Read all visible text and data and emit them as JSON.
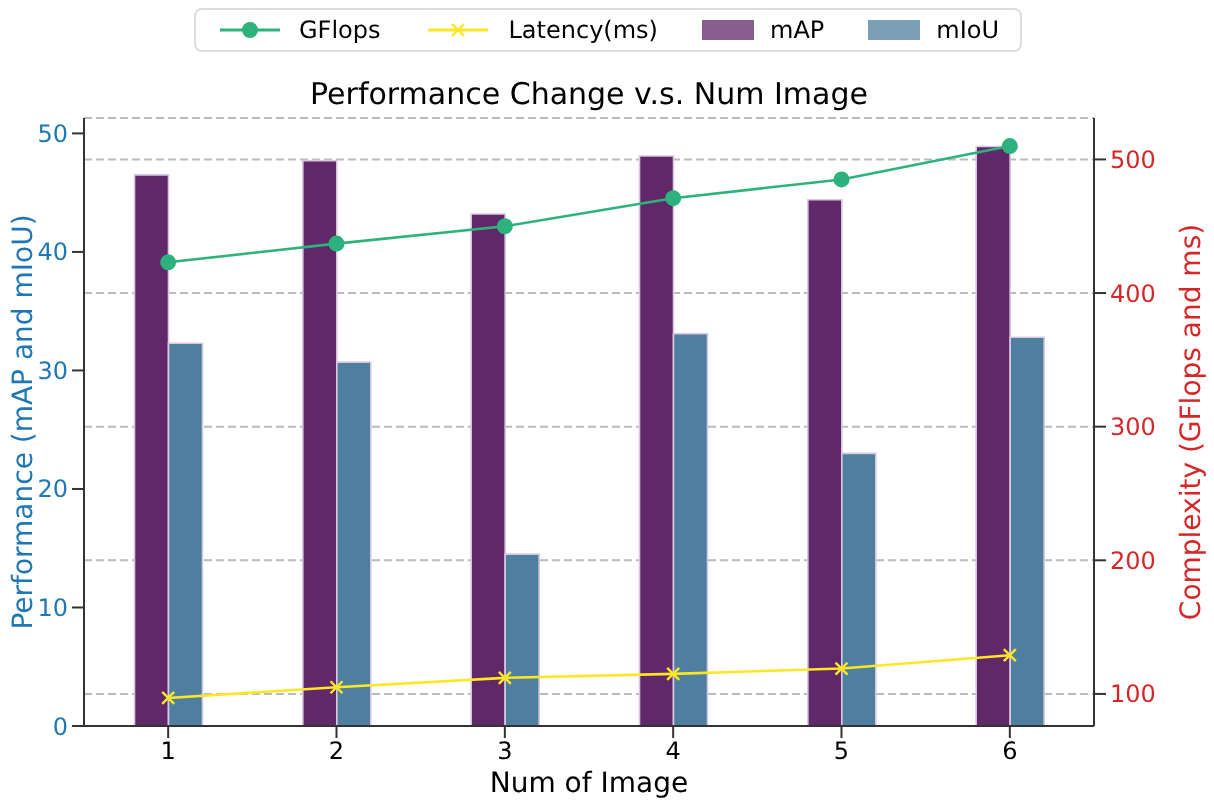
{
  "chart_data": {
    "type": "bar",
    "title": "Performance Change v.s. Num Image",
    "xlabel": "Num of Image",
    "ylabel": "Performance (mAP and mIoU)",
    "y2label": "Complexity (GFlops and ms)",
    "categories": [
      "1",
      "2",
      "3",
      "4",
      "5",
      "6"
    ],
    "series": [
      {
        "name": "GFlops",
        "type": "line",
        "axis": "y2",
        "color": "#2db27d",
        "marker": "circle",
        "values": [
          423,
          437,
          450,
          471,
          485,
          510
        ]
      },
      {
        "name": "Latency(ms)",
        "type": "line",
        "axis": "y2",
        "color": "#fde725",
        "marker": "cross",
        "values": [
          97,
          105,
          112,
          115,
          119,
          129
        ]
      },
      {
        "name": "mAP",
        "color": "#602868",
        "values": [
          46.5,
          47.7,
          43.2,
          48.1,
          44.4,
          48.9
        ]
      },
      {
        "name": "mIoU",
        "color": "#4e7f9f",
        "values": [
          32.3,
          30.7,
          14.5,
          33.1,
          23.0,
          32.8
        ]
      }
    ],
    "ylim": [
      0,
      51.3
    ],
    "yticks": [
      0,
      10,
      20,
      30,
      40,
      50
    ],
    "y2lim": [
      76,
      531
    ],
    "y2ticks": [
      100,
      200,
      300,
      400,
      500
    ],
    "grid": "y2",
    "legend": "top"
  }
}
